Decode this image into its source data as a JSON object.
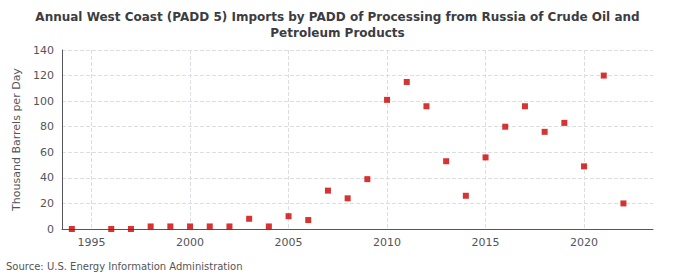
{
  "chart_data": {
    "type": "scatter",
    "title": "Annual West Coast (PADD 5) Imports by PADD of Processing from Russia of Crude Oil and\nPetroleum Products",
    "y_label": "Thousand Barrels per Day",
    "source": "Source: U.S. Energy Information Administration",
    "x": [
      1994,
      1996,
      1997,
      1998,
      1999,
      2000,
      2001,
      2002,
      2003,
      2004,
      2005,
      2006,
      2007,
      2008,
      2009,
      2010,
      2011,
      2012,
      2013,
      2014,
      2015,
      2016,
      2017,
      2018,
      2019,
      2020,
      2021,
      2022
    ],
    "values": [
      0,
      0,
      0,
      2,
      2,
      2,
      2,
      2,
      8,
      2,
      10,
      7,
      30,
      24,
      39,
      101,
      115,
      96,
      53,
      26,
      56,
      80,
      96,
      76,
      83,
      49,
      120,
      20
    ],
    "color": "#cc0000",
    "marker": "square",
    "xlim": [
      1993.5,
      2023.5
    ],
    "xticks": [
      1995,
      2000,
      2005,
      2010,
      2015,
      2020
    ],
    "ylim": [
      0,
      140
    ],
    "yticks": [
      0,
      20,
      40,
      60,
      80,
      100,
      120,
      140
    ],
    "grid": true
  }
}
